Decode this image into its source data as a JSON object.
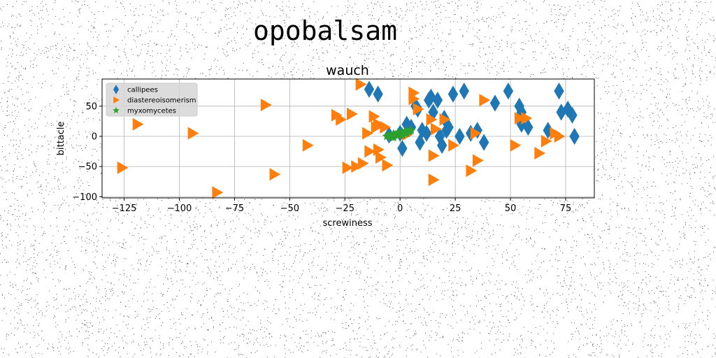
{
  "figure": {
    "suptitle": "opobalsam"
  },
  "chart_data": {
    "type": "scatter",
    "title": "wauch",
    "xlabel": "screwiness",
    "ylabel": "bittacle",
    "xlim": [
      -135,
      88
    ],
    "ylim": [
      -102,
      95
    ],
    "xticks": [
      -125,
      -100,
      -75,
      -50,
      -25,
      0,
      25,
      50,
      75
    ],
    "yticks": [
      -100,
      -50,
      0,
      50
    ],
    "grid": true,
    "legend_position": "top-left",
    "series": [
      {
        "name": "callipees",
        "color": "#1f77b4",
        "marker": "diamond",
        "points": [
          [
            -14,
            78
          ],
          [
            -10,
            70
          ],
          [
            -5,
            2
          ],
          [
            0,
            5
          ],
          [
            3,
            20
          ],
          [
            7,
            50
          ],
          [
            8,
            45
          ],
          [
            10,
            10
          ],
          [
            12,
            5
          ],
          [
            13,
            60
          ],
          [
            14,
            65
          ],
          [
            15,
            40
          ],
          [
            17,
            60
          ],
          [
            18,
            0
          ],
          [
            19,
            -15
          ],
          [
            20,
            30
          ],
          [
            21,
            10
          ],
          [
            22,
            15
          ],
          [
            24,
            70
          ],
          [
            27,
            0
          ],
          [
            29,
            75
          ],
          [
            32,
            5
          ],
          [
            35,
            10
          ],
          [
            38,
            -10
          ],
          [
            43,
            55
          ],
          [
            49,
            75
          ],
          [
            54,
            50
          ],
          [
            55,
            40
          ],
          [
            55,
            20
          ],
          [
            58,
            15
          ],
          [
            67,
            10
          ],
          [
            72,
            75
          ],
          [
            73,
            40
          ],
          [
            76,
            45
          ],
          [
            78,
            35
          ],
          [
            79,
            0
          ],
          [
            5,
            15
          ],
          [
            9,
            -10
          ],
          [
            1,
            -20
          ]
        ]
      },
      {
        "name": "diastereoisomerism",
        "color": "#ff7f0e",
        "marker": "triangle-right",
        "points": [
          [
            -126,
            -52
          ],
          [
            -119,
            20
          ],
          [
            -94,
            5
          ],
          [
            -83,
            -93
          ],
          [
            -61,
            52
          ],
          [
            -57,
            -63
          ],
          [
            -42,
            -15
          ],
          [
            -29,
            35
          ],
          [
            -27,
            28
          ],
          [
            -22,
            37
          ],
          [
            -24,
            -52
          ],
          [
            -20,
            -50
          ],
          [
            -17,
            -45
          ],
          [
            -18,
            86
          ],
          [
            -15,
            5
          ],
          [
            -14,
            -25
          ],
          [
            -12,
            33
          ],
          [
            -11,
            15
          ],
          [
            -10,
            -22
          ],
          [
            -9,
            -35
          ],
          [
            -6,
            -48
          ],
          [
            -7,
            15
          ],
          [
            -10,
            20
          ],
          [
            6,
            72
          ],
          [
            6,
            62
          ],
          [
            8,
            45
          ],
          [
            14,
            28
          ],
          [
            16,
            12
          ],
          [
            15,
            -32
          ],
          [
            15,
            -72
          ],
          [
            20,
            28
          ],
          [
            24,
            -15
          ],
          [
            32,
            -57
          ],
          [
            35,
            -40
          ],
          [
            34,
            5
          ],
          [
            38,
            60
          ],
          [
            52,
            -15
          ],
          [
            54,
            30
          ],
          [
            57,
            30
          ],
          [
            63,
            -28
          ],
          [
            66,
            -8
          ],
          [
            70,
            5
          ],
          [
            72,
            0
          ],
          [
            3,
            3
          ]
        ]
      },
      {
        "name": "myxomycetes",
        "color": "#2ca02c",
        "marker": "star",
        "points": [
          [
            -6,
            0
          ],
          [
            -5,
            2
          ],
          [
            -4,
            -1
          ],
          [
            -3,
            4
          ],
          [
            -2,
            3
          ],
          [
            -1,
            6
          ],
          [
            0,
            4
          ],
          [
            1,
            7
          ],
          [
            2,
            5
          ],
          [
            3,
            9
          ],
          [
            4,
            8
          ],
          [
            5,
            10
          ],
          [
            -3,
            -2
          ],
          [
            -1,
            1
          ],
          [
            1,
            2
          ],
          [
            3,
            5
          ]
        ]
      }
    ]
  }
}
